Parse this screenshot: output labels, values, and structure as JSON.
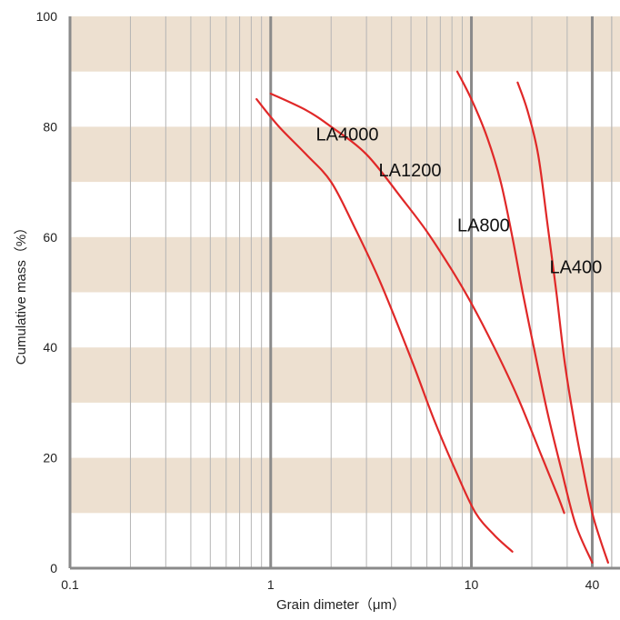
{
  "chart_data": {
    "type": "line",
    "xlabel": "Grain dimeter（μm）",
    "ylabel": "Cumulative mass（%）",
    "x_scale": "log",
    "xlim": [
      0.1,
      55
    ],
    "ylim": [
      0,
      100
    ],
    "x_tick_labels": [
      {
        "value": 0.1,
        "label": "0.1"
      },
      {
        "value": 1,
        "label": "1"
      },
      {
        "value": 10,
        "label": "10"
      },
      {
        "value": 40,
        "label": "40"
      }
    ],
    "y_tick_labels": [
      {
        "value": 0,
        "label": "0"
      },
      {
        "value": 20,
        "label": "20"
      },
      {
        "value": 40,
        "label": "40"
      },
      {
        "value": 60,
        "label": "60"
      },
      {
        "value": 80,
        "label": "80"
      },
      {
        "value": 100,
        "label": "100"
      }
    ],
    "grid": true,
    "band_color": "#ede0d0",
    "series_color": "#e02828",
    "series": [
      {
        "name": "LA4000",
        "points": [
          [
            0.85,
            85
          ],
          [
            1.1,
            80
          ],
          [
            1.5,
            75
          ],
          [
            2.0,
            70
          ],
          [
            2.6,
            62
          ],
          [
            3.5,
            52
          ],
          [
            5.0,
            38
          ],
          [
            6.5,
            27
          ],
          [
            8.5,
            17
          ],
          [
            10.5,
            10
          ],
          [
            13,
            6
          ],
          [
            16,
            3
          ]
        ]
      },
      {
        "name": "LA1200",
        "points": [
          [
            1.0,
            86
          ],
          [
            1.5,
            83
          ],
          [
            2.0,
            80
          ],
          [
            3.0,
            75
          ],
          [
            4.5,
            67
          ],
          [
            6.0,
            61
          ],
          [
            8.0,
            54
          ],
          [
            10.0,
            48
          ],
          [
            13,
            40
          ],
          [
            17,
            31
          ],
          [
            22,
            21
          ],
          [
            27,
            13
          ],
          [
            29,
            10
          ]
        ]
      },
      {
        "name": "LA800",
        "points": [
          [
            8.5,
            90
          ],
          [
            10,
            85
          ],
          [
            12,
            78
          ],
          [
            14,
            70
          ],
          [
            16,
            60
          ],
          [
            18,
            50
          ],
          [
            21,
            38
          ],
          [
            24,
            28
          ],
          [
            28,
            18
          ],
          [
            33,
            8
          ],
          [
            40,
            1
          ]
        ]
      },
      {
        "name": "LA400",
        "points": [
          [
            17,
            88
          ],
          [
            19,
            83
          ],
          [
            21.5,
            75
          ],
          [
            24,
            62
          ],
          [
            26.5,
            50
          ],
          [
            29,
            38
          ],
          [
            32,
            28
          ],
          [
            36,
            18
          ],
          [
            40,
            10
          ],
          [
            44,
            5
          ],
          [
            48,
            1
          ]
        ]
      }
    ]
  }
}
